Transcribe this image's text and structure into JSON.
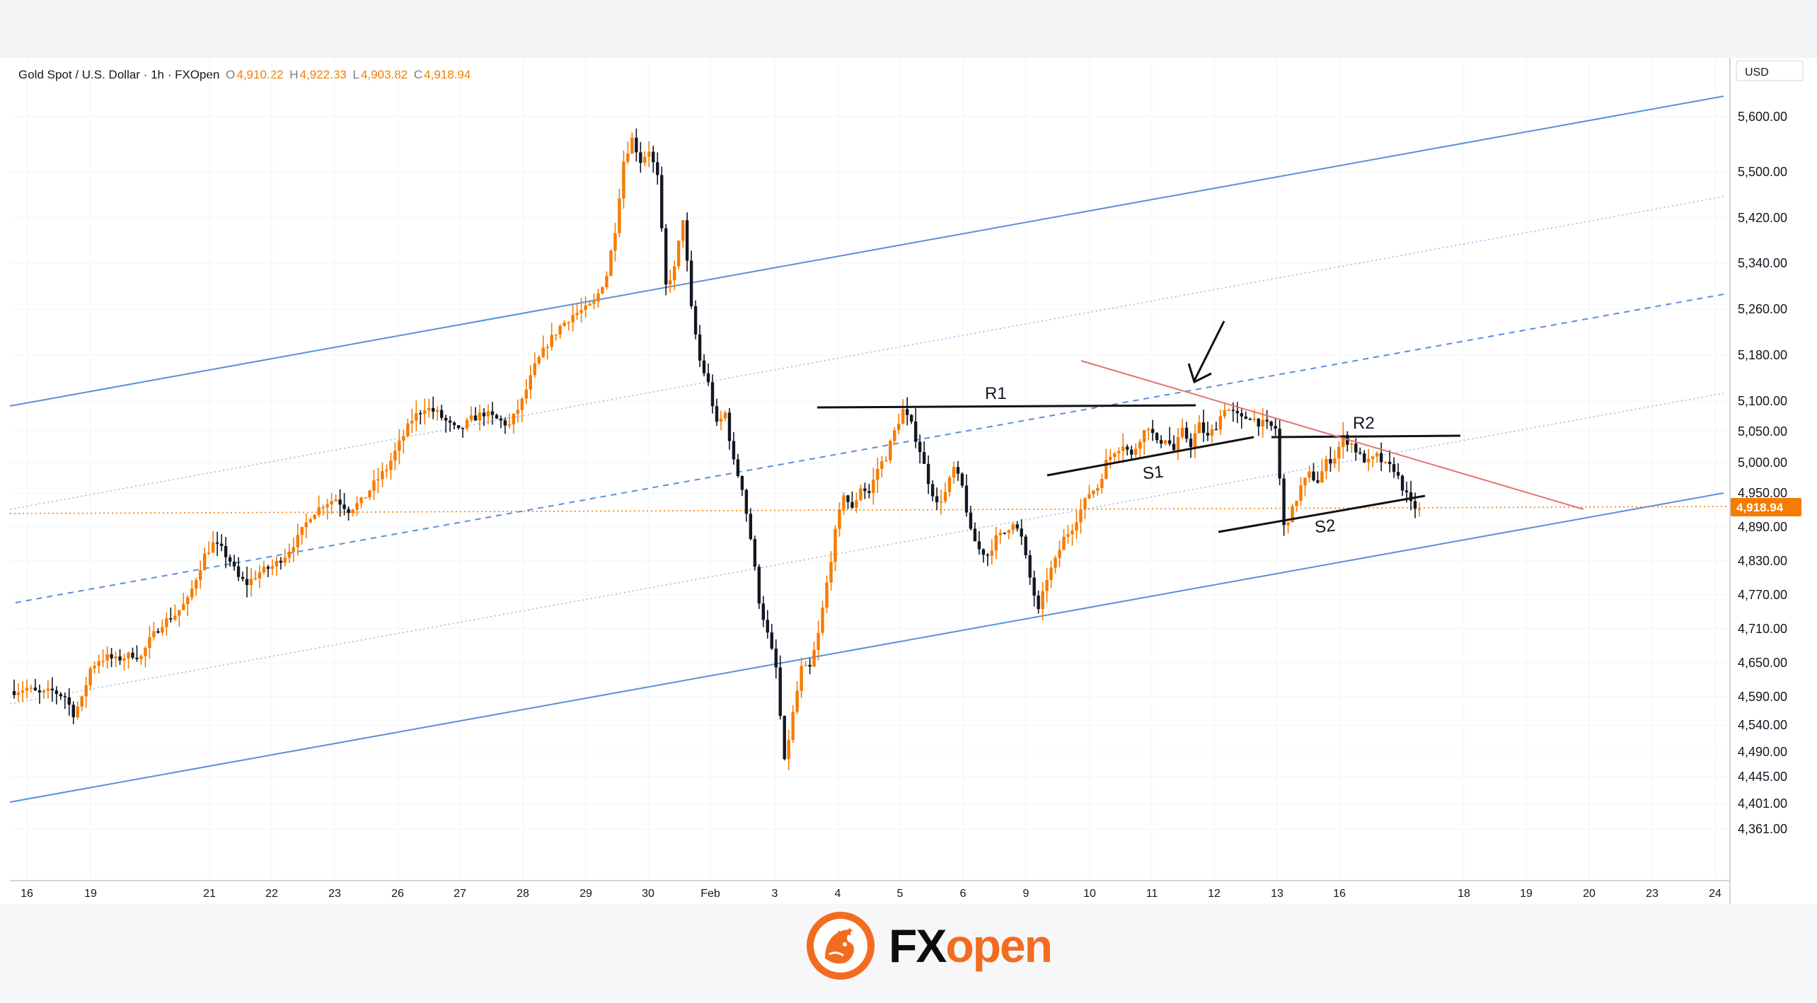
{
  "legend": {
    "symbol": "Gold Spot / U.S. Dollar · 1h · FXOpen",
    "open_label": "O",
    "open_value": "4,910.22",
    "high_label": "H",
    "high_value": "4,922.33",
    "low_label": "L",
    "low_value": "4,903.82",
    "close_label": "C",
    "close_value": "4,918.94"
  },
  "currency": "USD",
  "last_price": "4,918.94",
  "brand": {
    "fx": "FX",
    "open": "open"
  },
  "colors": {
    "up": "#f57c00",
    "down": "#131722",
    "channel": "#5b8fd9",
    "trendline": "#e57373",
    "annotation": "#111111",
    "last_price": "#f57c00"
  },
  "chart_data": {
    "type": "candlestick",
    "timeframe": "1h",
    "ylim": [
      4340,
      5680
    ],
    "y_ticks": [
      5600,
      5500,
      5420,
      5340,
      5260,
      5180,
      5100,
      5050,
      5000,
      4950,
      4890,
      4830,
      4770,
      4710,
      4650,
      4590,
      4540,
      4490,
      4445,
      4401,
      4361
    ],
    "y_tick_labels": [
      "5,600.00",
      "5,500.00",
      "5,420.00",
      "5,340.00",
      "5,260.00",
      "5,180.00",
      "5,100.00",
      "5,050.00",
      "5,000.00",
      "4,950.00",
      "4,890.00",
      "4,830.00",
      "4,770.00",
      "4,710.00",
      "4,650.00",
      "4,590.00",
      "4,540.00",
      "4,490.00",
      "4,445.00",
      "4,401.00",
      "4,361.00"
    ],
    "x_labels": [
      "16",
      "19",
      "21",
      "22",
      "23",
      "26",
      "27",
      "28",
      "29",
      "30",
      "Feb",
      "3",
      "4",
      "5",
      "6",
      "9",
      "10",
      "11",
      "12",
      "13",
      "16",
      "18",
      "19",
      "20",
      "23",
      "24"
    ],
    "annotations": [
      "R1",
      "S1",
      "R2",
      "S2"
    ],
    "price_path": [
      [
        0,
        4600
      ],
      [
        3,
        4605
      ],
      [
        6,
        4595
      ],
      [
        9,
        4600
      ],
      [
        12,
        4590
      ],
      [
        14,
        4560
      ],
      [
        16,
        4585
      ],
      [
        18,
        4640
      ],
      [
        20,
        4655
      ],
      [
        22,
        4660
      ],
      [
        24,
        4655
      ],
      [
        26,
        4660
      ],
      [
        28,
        4665
      ],
      [
        30,
        4660
      ],
      [
        32,
        4690
      ],
      [
        35,
        4720
      ],
      [
        38,
        4735
      ],
      [
        41,
        4760
      ],
      [
        43,
        4800
      ],
      [
        45,
        4840
      ],
      [
        47,
        4860
      ],
      [
        49,
        4850
      ],
      [
        51,
        4830
      ],
      [
        53,
        4800
      ],
      [
        55,
        4790
      ],
      [
        58,
        4810
      ],
      [
        61,
        4820
      ],
      [
        64,
        4840
      ],
      [
        67,
        4870
      ],
      [
        70,
        4910
      ],
      [
        73,
        4930
      ],
      [
        76,
        4940
      ],
      [
        79,
        4920
      ],
      [
        82,
        4935
      ],
      [
        85,
        4965
      ],
      [
        88,
        4990
      ],
      [
        91,
        5030
      ],
      [
        94,
        5070
      ],
      [
        97,
        5090
      ],
      [
        100,
        5080
      ],
      [
        103,
        5060
      ],
      [
        105,
        5050
      ],
      [
        108,
        5070
      ],
      [
        111,
        5080
      ],
      [
        114,
        5070
      ],
      [
        117,
        5060
      ],
      [
        120,
        5100
      ],
      [
        123,
        5160
      ],
      [
        126,
        5200
      ],
      [
        129,
        5230
      ],
      [
        132,
        5250
      ],
      [
        135,
        5260
      ],
      [
        137,
        5270
      ],
      [
        140,
        5320
      ],
      [
        142,
        5400
      ],
      [
        144,
        5520
      ],
      [
        146,
        5560
      ],
      [
        148,
        5520
      ],
      [
        150,
        5540
      ],
      [
        152,
        5490
      ],
      [
        154,
        5300
      ],
      [
        156,
        5330
      ],
      [
        158,
        5420
      ],
      [
        160,
        5260
      ],
      [
        162,
        5170
      ],
      [
        164,
        5130
      ],
      [
        166,
        5060
      ],
      [
        168,
        5080
      ],
      [
        170,
        5000
      ],
      [
        172,
        4960
      ],
      [
        174,
        4870
      ],
      [
        176,
        4760
      ],
      [
        178,
        4700
      ],
      [
        180,
        4640
      ],
      [
        182,
        4470
      ],
      [
        184,
        4560
      ],
      [
        186,
        4640
      ],
      [
        188,
        4640
      ],
      [
        190,
        4700
      ],
      [
        192,
        4790
      ],
      [
        194,
        4880
      ],
      [
        196,
        4950
      ],
      [
        198,
        4920
      ],
      [
        200,
        4960
      ],
      [
        202,
        4950
      ],
      [
        204,
        4990
      ],
      [
        206,
        5010
      ],
      [
        208,
        5050
      ],
      [
        210,
        5085
      ],
      [
        212,
        5060
      ],
      [
        214,
        5020
      ],
      [
        216,
        4970
      ],
      [
        218,
        4930
      ],
      [
        220,
        4950
      ],
      [
        222,
        4990
      ],
      [
        224,
        4960
      ],
      [
        226,
        4880
      ],
      [
        228,
        4850
      ],
      [
        230,
        4840
      ],
      [
        232,
        4870
      ],
      [
        234,
        4880
      ],
      [
        236,
        4900
      ],
      [
        238,
        4870
      ],
      [
        240,
        4800
      ],
      [
        242,
        4740
      ],
      [
        244,
        4800
      ],
      [
        246,
        4830
      ],
      [
        248,
        4870
      ],
      [
        250,
        4890
      ],
      [
        252,
        4920
      ],
      [
        254,
        4950
      ],
      [
        256,
        4960
      ],
      [
        258,
        5000
      ],
      [
        260,
        5020
      ],
      [
        262,
        5030
      ],
      [
        264,
        5010
      ],
      [
        266,
        5040
      ],
      [
        268,
        5060
      ],
      [
        270,
        5030
      ],
      [
        272,
        5040
      ],
      [
        274,
        5020
      ],
      [
        276,
        5050
      ],
      [
        278,
        5030
      ],
      [
        280,
        5060
      ],
      [
        282,
        5040
      ],
      [
        284,
        5060
      ],
      [
        286,
        5090
      ],
      [
        288,
        5080
      ],
      [
        290,
        5070
      ],
      [
        292,
        5075
      ],
      [
        294,
        5065
      ],
      [
        296,
        5060
      ],
      [
        298,
        5055
      ],
      [
        300,
        4890
      ],
      [
        302,
        4920
      ],
      [
        304,
        4960
      ],
      [
        306,
        4980
      ],
      [
        308,
        4970
      ],
      [
        310,
        5000
      ],
      [
        312,
        5010
      ],
      [
        314,
        5040
      ],
      [
        316,
        5030
      ],
      [
        318,
        5010
      ],
      [
        320,
        5000
      ],
      [
        322,
        5010
      ],
      [
        324,
        4995
      ],
      [
        326,
        4990
      ],
      [
        328,
        4960
      ],
      [
        330,
        4930
      ],
      [
        332,
        4919
      ]
    ]
  }
}
